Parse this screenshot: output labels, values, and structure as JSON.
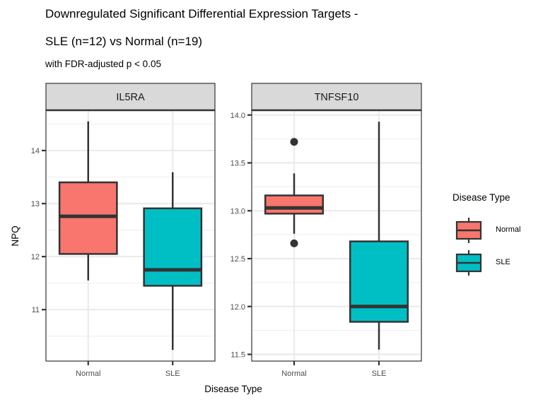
{
  "chart_data": {
    "type": "boxplot",
    "title": "Downregulated Significant Differential Expression Targets -",
    "title_line2": "SLE (n=12) vs Normal (n=19)",
    "subtitle": "with FDR-adjusted p < 0.05",
    "xlabel": "Disease Type",
    "ylabel": "NPQ",
    "categories": [
      "Normal",
      "SLE"
    ],
    "colors": {
      "Normal": "#F8766D",
      "SLE": "#00BFC4"
    },
    "legend": {
      "title": "Disease Type",
      "position": "right",
      "entries": [
        {
          "label": "Normal",
          "color": "#F8766D"
        },
        {
          "label": "SLE",
          "color": "#00BFC4"
        }
      ]
    },
    "grid": true,
    "facets": [
      {
        "strip": "IL5RA",
        "ylim": [
          10.03,
          14.76
        ],
        "yticks": [
          11,
          12,
          13,
          14
        ],
        "ytick_labels": [
          "11",
          "12",
          "13",
          "14"
        ],
        "boxes": [
          {
            "group": "Normal",
            "whisker_low": 11.55,
            "q1": 12.05,
            "median": 12.76,
            "q3": 13.4,
            "whisker_high": 14.55,
            "outliers": []
          },
          {
            "group": "SLE",
            "whisker_low": 10.24,
            "q1": 11.45,
            "median": 11.75,
            "q3": 12.91,
            "whisker_high": 13.59,
            "outliers": []
          }
        ]
      },
      {
        "strip": "TNFSF10",
        "ylim": [
          11.43,
          14.05
        ],
        "yticks": [
          11.5,
          12.0,
          12.5,
          13.0,
          13.5,
          14.0
        ],
        "ytick_labels": [
          "11.5",
          "12.0",
          "12.5",
          "13.0",
          "13.5",
          "14.0"
        ],
        "boxes": [
          {
            "group": "Normal",
            "whisker_low": 12.76,
            "q1": 12.97,
            "median": 13.03,
            "q3": 13.16,
            "whisker_high": 13.39,
            "outliers": [
              13.72,
              12.66
            ]
          },
          {
            "group": "SLE",
            "whisker_low": 11.55,
            "q1": 11.84,
            "median": 12.0,
            "q3": 12.68,
            "whisker_high": 13.93,
            "outliers": []
          }
        ]
      }
    ]
  }
}
